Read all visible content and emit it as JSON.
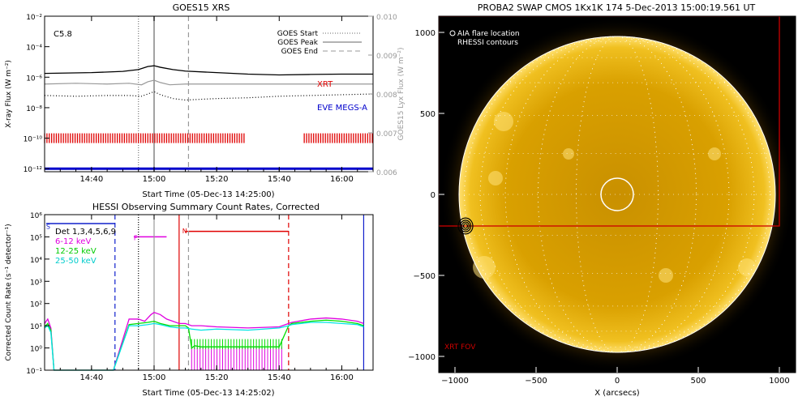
{
  "colors": {
    "goes_flux": "#000000",
    "goes_lyx": "#999999",
    "xrt": "#e00000",
    "eve": "#0000cc",
    "hessi_black": "#000000",
    "hessi_6_12": "#e000e0",
    "hessi_12_25": "#00dd00",
    "hessi_25_50": "#00e5e5",
    "hessi_state": "#1020cc",
    "sun_bg": "#000000",
    "sun_disk": "#d8a000",
    "xrt_fov": "#cc0000",
    "aia_circle": "#ffffff"
  },
  "chart_data": [
    {
      "type": "line",
      "title": "GOES15 XRS",
      "xlabel": "Start Time (05-Dec-13 14:25:00)",
      "ylabel": "X-ray Flux (W m⁻²)",
      "ylabel_right": "GOES15 Lyx Flux (W m⁻²)",
      "x_ticks": [
        "14:40",
        "15:00",
        "15:20",
        "15:40",
        "16:00"
      ],
      "x_ticks_minutes": [
        40,
        60,
        80,
        100,
        120
      ],
      "xlim_minutes": [
        25,
        130
      ],
      "y_ticks": [
        "10⁻²",
        "10⁻⁴",
        "10⁻⁶",
        "10⁻⁸",
        "10⁻¹⁰",
        "10⁻¹²"
      ],
      "y_ticks_log": [
        -2,
        -4,
        -6,
        -8,
        -10,
        -12
      ],
      "ylim_log": [
        -12.2,
        -2
      ],
      "y2_ticks": [
        "0.010",
        "0.009",
        "0.008",
        "0.007",
        "0.006"
      ],
      "y2_ticks_values": [
        0.01,
        0.009,
        0.008,
        0.007,
        0.006
      ],
      "y2lim": [
        0.006,
        0.01
      ],
      "goes_class": "C5.8",
      "vlines": [
        {
          "name": "GOES Start",
          "minute": 55,
          "style": "dotted"
        },
        {
          "name": "GOES Peak",
          "minute": 60,
          "style": "solid"
        },
        {
          "name": "GOES End",
          "minute": 71,
          "style": "dashed"
        }
      ],
      "labels": {
        "xrt": "XRT",
        "eve": "EVE MEGS-A"
      },
      "series": [
        {
          "name": "",
          "minutes": [
            25,
            40,
            50,
            55,
            58,
            60,
            62,
            66,
            70,
            80,
            90,
            100,
            110,
            120,
            130
          ],
          "log_flux": [
            -5.75,
            -5.7,
            -5.62,
            -5.5,
            -5.3,
            -5.25,
            -5.35,
            -5.5,
            -5.6,
            -5.7,
            -5.8,
            -5.85,
            -5.82,
            -5.8,
            -5.8
          ]
        },
        {
          "name": "",
          "minutes": [
            25,
            35,
            45,
            52,
            56,
            58,
            60,
            62,
            65,
            70,
            80,
            90,
            100,
            110,
            120,
            130
          ],
          "log_flux": [
            -6.45,
            -6.4,
            -6.45,
            -6.4,
            -6.5,
            -6.3,
            -6.2,
            -6.35,
            -6.5,
            -6.45,
            -6.45,
            -6.45,
            -6.45,
            -6.45,
            -6.45,
            -6.45
          ]
        },
        {
          "name": "",
          "minutes": [
            25,
            35,
            45,
            52,
            56,
            58,
            60,
            62,
            66,
            70,
            75,
            80,
            90,
            100,
            110,
            120,
            130
          ],
          "log_flux": [
            -7.2,
            -7.25,
            -7.2,
            -7.2,
            -7.25,
            -7.1,
            -6.95,
            -7.15,
            -7.4,
            -7.5,
            -7.45,
            -7.4,
            -7.35,
            -7.25,
            -7.2,
            -7.15,
            -7.1
          ]
        }
      ],
      "xrt_coverage_minutes": [
        [
          25,
          89
        ],
        [
          108,
          130
        ]
      ],
      "xrt_log_level": -10,
      "eve_log_level": -12
    },
    {
      "type": "line",
      "title": "HESSI Observing Summary Count Rates, Corrected",
      "xlabel": "Start Time (05-Dec-13 14:25:02)",
      "ylabel": "Corrected Count Rate (s⁻¹ detector⁻¹)",
      "x_ticks": [
        "14:40",
        "15:00",
        "15:20",
        "15:40",
        "16:00"
      ],
      "x_ticks_minutes": [
        40,
        60,
        80,
        100,
        120
      ],
      "xlim_minutes": [
        25,
        130
      ],
      "y_ticks": [
        "10⁶",
        "10⁵",
        "10⁴",
        "10³",
        "10²",
        "10¹",
        "10⁰",
        "10⁻¹"
      ],
      "y_ticks_log": [
        6,
        5,
        4,
        3,
        2,
        1,
        0,
        -1
      ],
      "ylim_log": [
        -1,
        6
      ],
      "legend": [
        "Det 1,3,4,5,6,9",
        "6-12 keV",
        "12-25 keV",
        "25-50 keV"
      ],
      "flags": [
        {
          "text": "S",
          "minute": 25.5,
          "log": 5.5
        },
        {
          "text": "F",
          "minute": 53.5,
          "log": 5.0
        },
        {
          "text": "N",
          "minute": 69,
          "log": 5.3
        }
      ],
      "vlines": [
        {
          "minute": 47.5,
          "style": "dashed",
          "color": "hessi_state"
        },
        {
          "minute": 55,
          "style": "dotted",
          "color": "hessi_black"
        },
        {
          "minute": 60,
          "style": "solid",
          "color": "goes_lyx"
        },
        {
          "minute": 68,
          "style": "solid",
          "color": "xrt"
        },
        {
          "minute": 71,
          "style": "dashed",
          "color": "goes_lyx"
        },
        {
          "minute": 103,
          "style": "dashed",
          "color": "xrt"
        },
        {
          "minute": 127,
          "style": "solid",
          "color": "hessi_state"
        }
      ],
      "series": [
        {
          "name": "6-12 keV",
          "minutes": [
            25,
            26,
            27,
            28,
            47,
            52,
            55,
            57,
            59,
            60,
            62,
            64,
            66,
            68,
            70,
            72,
            75,
            80,
            90,
            100,
            103,
            104,
            110,
            115,
            120,
            125,
            127
          ],
          "log_rate": [
            1.1,
            1.3,
            0.9,
            -1,
            -1,
            1.3,
            1.3,
            1.2,
            1.5,
            1.6,
            1.5,
            1.3,
            1.2,
            1.1,
            1.1,
            1.0,
            1.0,
            0.95,
            0.9,
            0.95,
            1.1,
            1.15,
            1.3,
            1.35,
            1.3,
            1.2,
            1.1
          ]
        },
        {
          "name": "12-25 keV",
          "minutes": [
            25,
            26,
            27,
            28,
            47,
            52,
            55,
            58,
            60,
            62,
            65,
            68,
            70,
            71,
            72,
            73,
            75,
            80,
            90,
            100,
            103,
            104,
            110,
            115,
            120,
            125,
            127
          ],
          "log_rate": [
            0.95,
            1.1,
            0.8,
            -1,
            -1,
            1.05,
            1.1,
            1.15,
            1.2,
            1.1,
            1.0,
            1.0,
            1.0,
            0.9,
            0.0,
            0.1,
            0.05,
            0.05,
            0.05,
            0.05,
            1.0,
            1.1,
            1.2,
            1.25,
            1.2,
            1.1,
            1.0
          ]
        },
        {
          "name": "25-50 keV",
          "minutes": [
            25,
            26,
            27,
            28,
            47,
            52,
            55,
            58,
            60,
            62,
            65,
            68,
            70,
            72,
            75,
            80,
            90,
            100,
            103,
            104,
            110,
            115,
            120,
            125,
            127
          ],
          "log_rate": [
            0.9,
            1.0,
            0.7,
            -1,
            -1,
            1.0,
            1.0,
            1.05,
            1.1,
            1.05,
            0.95,
            0.9,
            0.9,
            0.85,
            0.8,
            0.85,
            0.8,
            0.9,
            1.0,
            1.05,
            1.15,
            1.15,
            1.1,
            1.05,
            0.95
          ]
        }
      ],
      "state_segments": [
        {
          "color": "hessi_state",
          "minutes": [
            25.5,
            47.5
          ],
          "log": 5.6
        },
        {
          "color": "hessi_6_12",
          "minutes": [
            53.5,
            64
          ],
          "log": 5.0
        },
        {
          "color": "xrt",
          "minutes": [
            70,
            103
          ],
          "log": 5.25
        }
      ]
    },
    {
      "type": "image",
      "title": "PROBA2 SWAP CMOS 1Kx1K 174  5-Dec-2013 15:00:19.561 UT",
      "xlabel": "X (arcsecs)",
      "ylabel": "",
      "x_ticks": [
        "−1000",
        "−500",
        "0",
        "500",
        "1000"
      ],
      "x_ticks_values": [
        -1000,
        -500,
        0,
        500,
        1000
      ],
      "y_ticks": [
        "1000",
        "500",
        "0",
        "−500",
        "−1000"
      ],
      "y_ticks_values": [
        1000,
        500,
        0,
        -500,
        -1000
      ],
      "xlim": [
        -1100,
        1100
      ],
      "ylim": [
        -1100,
        1100
      ],
      "legend": [
        "AIA flare location",
        "RHESSI contours"
      ],
      "solar_radius_arcsec": 975,
      "aia_flare": {
        "x": 0,
        "y": 0,
        "r": 100
      },
      "rhessi_flare": {
        "x": -935,
        "y": -195
      },
      "xrt_fov": {
        "x1": -1100,
        "y1": -195,
        "x2": 1000,
        "y2": 1100
      },
      "xrt_fov_label": "XRT FOV"
    }
  ]
}
